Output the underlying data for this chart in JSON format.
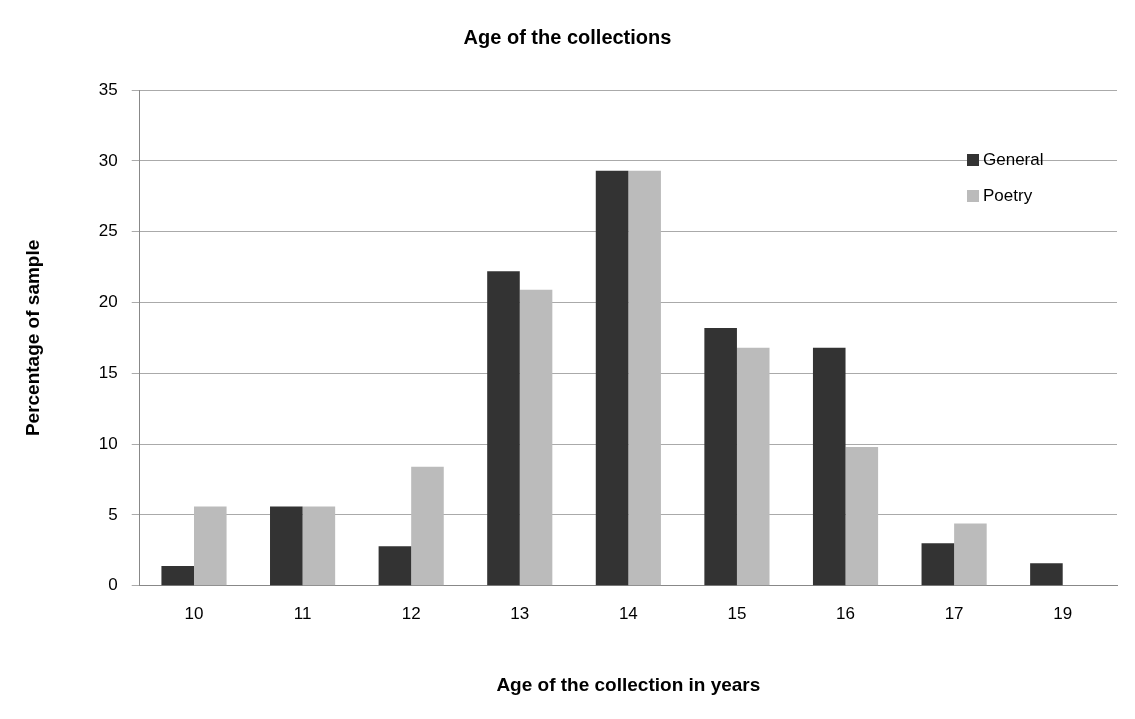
{
  "chart_data": {
    "type": "bar",
    "title": "Age of the collections",
    "xlabel": "Age of the collection in years",
    "ylabel": "Percentage of sample",
    "categories": [
      "10",
      "11",
      "12",
      "13",
      "14",
      "15",
      "16",
      "17",
      "19"
    ],
    "series": [
      {
        "name": "General",
        "color": "#333333",
        "values": [
          1.4,
          5.6,
          2.8,
          22.2,
          29.3,
          18.2,
          16.8,
          3,
          1.6
        ]
      },
      {
        "name": "Poetry",
        "color": "#bbbbbb",
        "values": [
          5.6,
          5.6,
          8.4,
          20.9,
          29.3,
          16.8,
          9.8,
          4.4,
          null
        ]
      }
    ],
    "ylim": [
      0,
      35
    ],
    "yticks": [
      0,
      5,
      10,
      15,
      20,
      25,
      30,
      35
    ],
    "grid": "y",
    "legend": "top right"
  }
}
